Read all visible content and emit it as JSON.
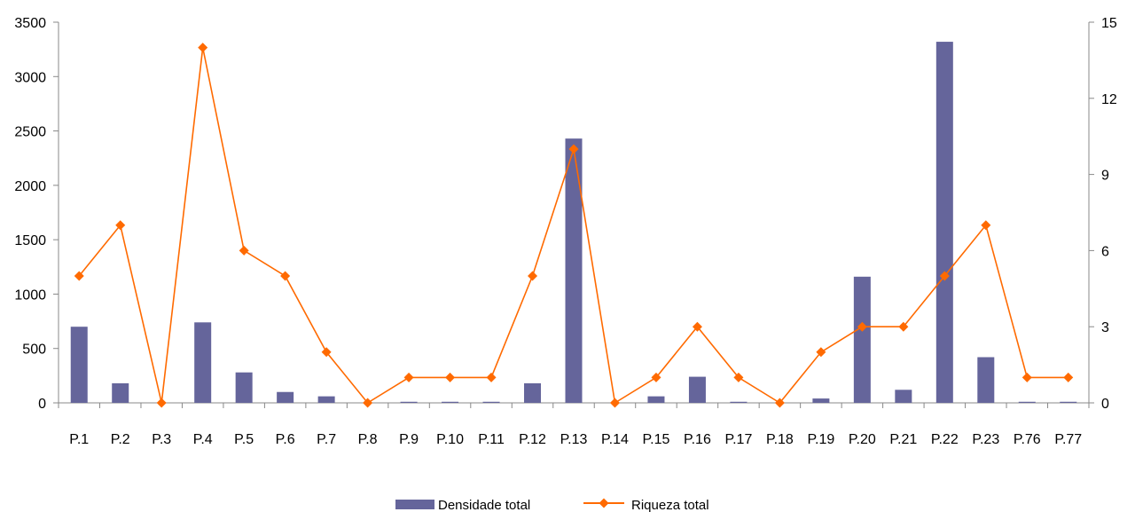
{
  "chart_data": {
    "type": "bar",
    "categories": [
      "P.1",
      "P.2",
      "P.3",
      "P.4",
      "P.5",
      "P.6",
      "P.7",
      "P.8",
      "P.9",
      "P.10",
      "P.11",
      "P.12",
      "P.13",
      "P.14",
      "P.15",
      "P.16",
      "P.17",
      "P.18",
      "P.19",
      "P.20",
      "P.21",
      "P.22",
      "P.23",
      "P.76",
      "P.77"
    ],
    "series": [
      {
        "name": "Densidade total",
        "kind": "bar",
        "axis": "left",
        "color": "#65659b",
        "values": [
          700,
          180,
          0,
          740,
          280,
          100,
          60,
          0,
          10,
          10,
          10,
          180,
          2430,
          0,
          60,
          240,
          10,
          0,
          40,
          1160,
          120,
          3320,
          420,
          10,
          10
        ]
      },
      {
        "name": "Riqueza total",
        "kind": "line",
        "axis": "right",
        "color": "#ff6a00",
        "marker": "diamond",
        "values": [
          5,
          7,
          0,
          14,
          6,
          5,
          2,
          0,
          1,
          1,
          1,
          5,
          10,
          0,
          1,
          3,
          1,
          0,
          2,
          3,
          3,
          5,
          7,
          1,
          1
        ]
      }
    ],
    "y_left": {
      "ylim": [
        0,
        3500
      ],
      "ticks": [
        0,
        500,
        1000,
        1500,
        2000,
        2500,
        3000,
        3500
      ]
    },
    "y_right": {
      "ylim": [
        0,
        15
      ],
      "ticks": [
        0,
        3,
        6,
        9,
        12,
        15
      ]
    },
    "title": "",
    "xlabel": "",
    "ylabel": "",
    "grid": false,
    "legend_position": "bottom-center"
  }
}
